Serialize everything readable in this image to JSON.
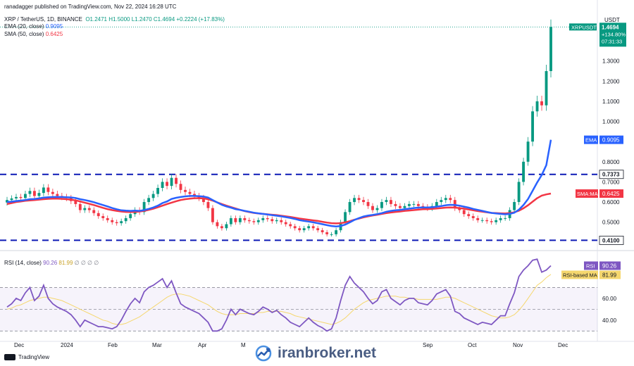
{
  "header": {
    "published": "ranadagger published on TradingView.com, Nov 22, 2024 16:28 UTC",
    "symbol": "XRP / TetherUS, 1D, BINANCE",
    "ohlc": {
      "O": "O1.2471",
      "H": "H1.5000",
      "L": "L1.2470",
      "C": "C1.4694",
      "chg": "+0.2224 (+17.83%)"
    },
    "ema_label": "EMA (20, close)",
    "ema_value": "0.9095",
    "sma_label": "SMA (50, close)",
    "sma_value": "0.6425",
    "rsi_label": "RSI (14, close)",
    "rsi_value": "90.26",
    "rsi_ma_value": "81.99",
    "rsi_extra": "∅ ∅ ∅ ∅"
  },
  "footer": {
    "brand": "TradingView",
    "watermark": "iranbroker.net"
  },
  "colors": {
    "up": "#089981",
    "down": "#f23645",
    "ema": "#2962ff",
    "sma": "#f23645",
    "rsi": "#7e57c2",
    "rsima": "#f5d76e",
    "level": "#0d1ab5"
  },
  "chart_data": [
    {
      "type": "candlestick",
      "symbol": "XRPUSDT",
      "y_unit": "USDT",
      "ylim": [
        0.38,
        1.54
      ],
      "y_ticks": [
        "0.5000",
        "0.6000",
        "0.7000",
        "0.8000",
        "1.0000",
        "1.1000",
        "1.2000",
        "1.3000"
      ],
      "x_ticks": [
        "Dec",
        "2024",
        "Feb",
        "Mar",
        "Apr",
        "M",
        "Sep",
        "Oct",
        "Nov",
        "Dec"
      ],
      "levels": [
        {
          "value": 0.7373,
          "label": "0.7373"
        },
        {
          "value": 0.41,
          "label": "0.4100"
        }
      ],
      "price_tag": {
        "symbol": "XRPUSDT",
        "price": "1.4694",
        "change": "+134.80%",
        "countdown": "07:31:33"
      },
      "ema_tag": {
        "name": "EMA",
        "value": "0.9095"
      },
      "sma_tag": {
        "name": "SMA:MA",
        "value": "0.6425"
      },
      "closes": [
        0.61,
        0.618,
        0.625,
        0.62,
        0.64,
        0.655,
        0.63,
        0.645,
        0.672,
        0.65,
        0.64,
        0.63,
        0.625,
        0.62,
        0.605,
        0.59,
        0.56,
        0.57,
        0.56,
        0.545,
        0.53,
        0.52,
        0.51,
        0.5,
        0.495,
        0.505,
        0.52,
        0.54,
        0.56,
        0.55,
        0.6,
        0.62,
        0.64,
        0.67,
        0.7,
        0.68,
        0.72,
        0.69,
        0.66,
        0.65,
        0.64,
        0.63,
        0.62,
        0.6,
        0.57,
        0.5,
        0.48,
        0.47,
        0.49,
        0.52,
        0.5,
        0.52,
        0.51,
        0.505,
        0.5,
        0.51,
        0.52,
        0.515,
        0.505,
        0.51,
        0.5,
        0.49,
        0.48,
        0.47,
        0.46,
        0.47,
        0.48,
        0.47,
        0.46,
        0.45,
        0.44,
        0.44,
        0.46,
        0.5,
        0.55,
        0.6,
        0.62,
        0.61,
        0.6,
        0.58,
        0.56,
        0.57,
        0.6,
        0.61,
        0.59,
        0.58,
        0.57,
        0.58,
        0.59,
        0.59,
        0.58,
        0.575,
        0.57,
        0.58,
        0.6,
        0.61,
        0.62,
        0.61,
        0.57,
        0.56,
        0.54,
        0.53,
        0.52,
        0.51,
        0.51,
        0.505,
        0.5,
        0.51,
        0.52,
        0.52,
        0.56,
        0.6,
        0.7,
        0.8,
        0.9,
        1.05,
        1.1,
        1.08,
        1.25,
        1.469
      ],
      "ema20": [
        0.6,
        0.602,
        0.605,
        0.607,
        0.61,
        0.614,
        0.615,
        0.618,
        0.622,
        0.624,
        0.625,
        0.625,
        0.625,
        0.624,
        0.623,
        0.62,
        0.614,
        0.61,
        0.605,
        0.599,
        0.592,
        0.585,
        0.578,
        0.57,
        0.564,
        0.559,
        0.557,
        0.556,
        0.557,
        0.556,
        0.56,
        0.566,
        0.573,
        0.582,
        0.595,
        0.603,
        0.615,
        0.621,
        0.625,
        0.628,
        0.63,
        0.63,
        0.629,
        0.627,
        0.622,
        0.61,
        0.598,
        0.586,
        0.578,
        0.572,
        0.565,
        0.561,
        0.556,
        0.552,
        0.547,
        0.544,
        0.541,
        0.538,
        0.535,
        0.532,
        0.529,
        0.525,
        0.521,
        0.516,
        0.51,
        0.506,
        0.503,
        0.499,
        0.495,
        0.49,
        0.485,
        0.481,
        0.479,
        0.481,
        0.488,
        0.499,
        0.511,
        0.52,
        0.528,
        0.533,
        0.536,
        0.54,
        0.545,
        0.552,
        0.556,
        0.559,
        0.561,
        0.564,
        0.567,
        0.57,
        0.572,
        0.573,
        0.573,
        0.574,
        0.577,
        0.58,
        0.584,
        0.586,
        0.585,
        0.582,
        0.577,
        0.572,
        0.566,
        0.561,
        0.556,
        0.551,
        0.546,
        0.543,
        0.541,
        0.539,
        0.541,
        0.547,
        0.562,
        0.585,
        0.615,
        0.656,
        0.697,
        0.734,
        0.783,
        0.909
      ],
      "sma50": [
        0.59,
        0.595,
        0.6,
        0.603,
        0.606,
        0.608,
        0.61,
        0.612,
        0.614,
        0.616,
        0.617,
        0.617,
        0.616,
        0.614,
        0.612,
        0.608,
        0.603,
        0.597,
        0.591,
        0.585,
        0.578,
        0.571,
        0.565,
        0.56,
        0.556,
        0.553,
        0.551,
        0.55,
        0.551,
        0.553,
        0.556,
        0.561,
        0.567,
        0.574,
        0.582,
        0.59,
        0.597,
        0.604,
        0.61,
        0.614,
        0.617,
        0.619,
        0.619,
        0.618,
        0.614,
        0.607,
        0.598,
        0.59,
        0.582,
        0.575,
        0.568,
        0.561,
        0.555,
        0.55,
        0.546,
        0.543,
        0.541,
        0.539,
        0.537,
        0.535,
        0.532,
        0.529,
        0.526,
        0.522,
        0.518,
        0.515,
        0.512,
        0.509,
        0.506,
        0.502,
        0.498,
        0.495,
        0.494,
        0.495,
        0.499,
        0.505,
        0.512,
        0.518,
        0.524,
        0.529,
        0.533,
        0.537,
        0.541,
        0.545,
        0.548,
        0.551,
        0.553,
        0.556,
        0.558,
        0.56,
        0.562,
        0.564,
        0.565,
        0.566,
        0.568,
        0.57,
        0.572,
        0.573,
        0.572,
        0.57,
        0.567,
        0.563,
        0.559,
        0.555,
        0.552,
        0.549,
        0.546,
        0.545,
        0.544,
        0.543,
        0.545,
        0.549,
        0.557,
        0.569,
        0.584,
        0.602,
        0.619,
        0.632,
        0.638,
        0.642
      ]
    },
    {
      "type": "line",
      "name": "RSI (14, close)",
      "ylim": [
        25,
        100
      ],
      "y_ticks": [
        "40.00",
        "60.00"
      ],
      "bands": [
        30,
        50,
        70
      ],
      "rsi_tag": {
        "name": "RSI",
        "value": "90.26"
      },
      "ma_tag": {
        "name": "RSI-based MA",
        "value": "81.99"
      },
      "rsi": [
        52,
        55,
        60,
        58,
        65,
        70,
        58,
        62,
        72,
        60,
        55,
        52,
        50,
        48,
        45,
        40,
        34,
        40,
        38,
        36,
        34,
        34,
        33,
        32,
        34,
        40,
        48,
        55,
        60,
        56,
        66,
        70,
        72,
        75,
        78,
        70,
        76,
        65,
        55,
        52,
        50,
        48,
        46,
        42,
        38,
        30,
        30,
        32,
        40,
        50,
        45,
        50,
        48,
        46,
        45,
        48,
        52,
        50,
        47,
        49,
        45,
        42,
        38,
        36,
        34,
        38,
        42,
        38,
        35,
        33,
        30,
        32,
        42,
        58,
        72,
        80,
        74,
        70,
        66,
        60,
        55,
        58,
        66,
        68,
        60,
        57,
        54,
        58,
        60,
        60,
        56,
        55,
        54,
        58,
        64,
        66,
        68,
        62,
        48,
        46,
        42,
        40,
        38,
        36,
        38,
        37,
        36,
        40,
        44,
        44,
        55,
        65,
        80,
        86,
        90,
        95,
        96,
        84,
        86,
        90
      ],
      "rsi_ma": [
        50,
        51,
        53,
        54,
        56,
        58,
        59,
        60,
        61,
        61,
        60,
        59,
        58,
        56,
        54,
        52,
        50,
        48,
        46,
        44,
        42,
        40,
        39,
        37,
        36,
        36,
        37,
        39,
        41,
        43,
        46,
        49,
        52,
        55,
        58,
        61,
        63,
        64,
        64,
        63,
        62,
        60,
        58,
        56,
        54,
        51,
        48,
        46,
        45,
        45,
        45,
        46,
        46,
        46,
        46,
        47,
        47,
        48,
        48,
        48,
        48,
        47,
        46,
        44,
        43,
        42,
        41,
        40,
        39,
        38,
        37,
        36,
        37,
        39,
        42,
        46,
        50,
        53,
        56,
        58,
        59,
        60,
        61,
        62,
        62,
        62,
        61,
        61,
        60,
        60,
        59,
        59,
        59,
        59,
        59,
        60,
        61,
        61,
        60,
        58,
        56,
        54,
        52,
        50,
        48,
        46,
        44,
        43,
        42,
        42,
        43,
        45,
        49,
        54,
        60,
        66,
        72,
        75,
        79,
        82
      ]
    }
  ]
}
